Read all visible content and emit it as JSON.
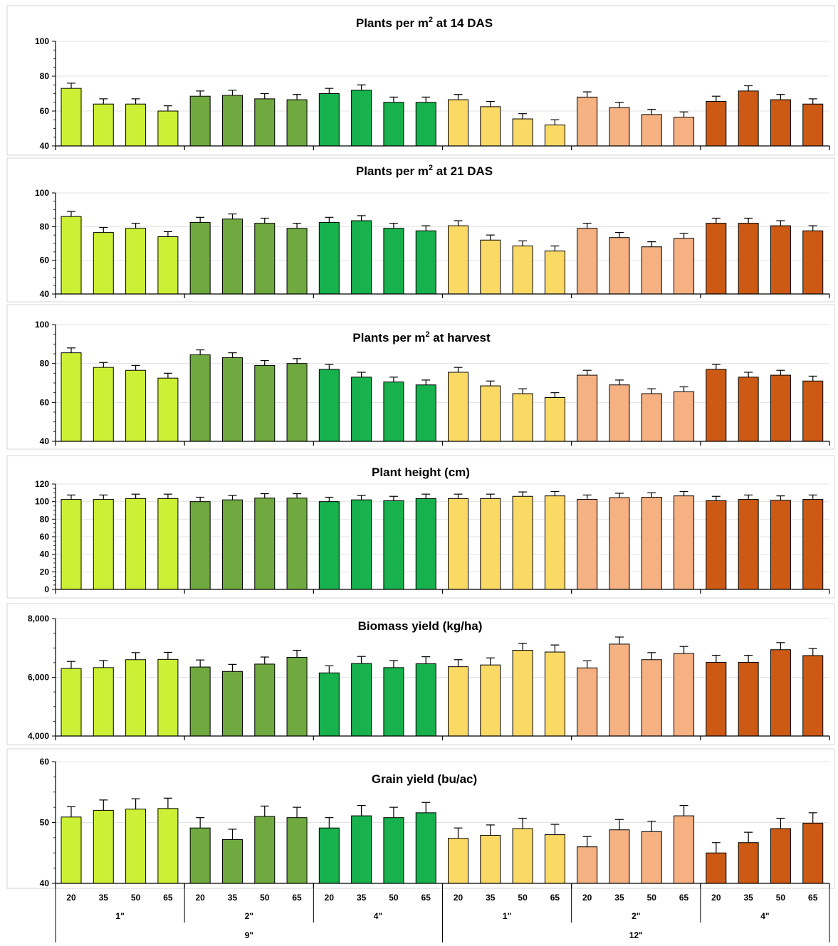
{
  "chart_data": [
    {
      "type": "bar",
      "title": "Plants per m² at 14 DAS",
      "title_parts": [
        "Plants per m",
        "2",
        " at 14 DAS"
      ],
      "ylim": [
        40,
        100
      ],
      "yticks": [
        "40",
        "60",
        "80",
        "100"
      ],
      "values": [
        73,
        64,
        64,
        60,
        68.5,
        69,
        67,
        66.5,
        70,
        72,
        65,
        65,
        66.5,
        62.5,
        55.5,
        52,
        68,
        62,
        58,
        56.5,
        65.5,
        71.5,
        66.5,
        64
      ],
      "errors": [
        3,
        3,
        3,
        3,
        3,
        3,
        3,
        3,
        3,
        3,
        3,
        3,
        3,
        3,
        3,
        3,
        3,
        3,
        3,
        3,
        3,
        3,
        3,
        3
      ]
    },
    {
      "type": "bar",
      "title": "Plants per m² at 21 DAS",
      "title_parts": [
        "Plants per m",
        "2",
        " at 21 DAS"
      ],
      "ylim": [
        40,
        100
      ],
      "yticks": [
        "40",
        "60",
        "80",
        "100"
      ],
      "values": [
        86,
        76.5,
        79,
        74,
        82.5,
        84.5,
        82,
        79,
        82.5,
        83.5,
        79,
        77.5,
        80.5,
        72,
        68.5,
        65.5,
        79,
        73.5,
        68,
        73,
        82,
        82,
        80.5,
        77.5
      ],
      "errors": [
        3,
        3,
        3,
        3,
        3,
        3,
        3,
        3,
        3,
        3,
        3,
        3,
        3,
        3,
        3,
        3,
        3,
        3,
        3,
        3,
        3,
        3,
        3,
        3
      ]
    },
    {
      "type": "bar",
      "title": "Plants per m² at harvest",
      "title_parts": [
        "Plants per m",
        "2",
        " at harvest"
      ],
      "ylim": [
        40,
        100
      ],
      "yticks": [
        "40",
        "60",
        "80",
        "100"
      ],
      "values": [
        85.5,
        78,
        76.5,
        72.5,
        84.5,
        83,
        79,
        80,
        77,
        73,
        70.5,
        69,
        75.5,
        68.5,
        64.5,
        62.5,
        74,
        69,
        64.5,
        65.5,
        77,
        73,
        74,
        71
      ],
      "errors": [
        2.5,
        2.5,
        2.5,
        2.5,
        2.5,
        2.5,
        2.5,
        2.5,
        2.5,
        2.5,
        2.5,
        2.5,
        2.5,
        2.5,
        2.5,
        2.5,
        2.5,
        2.5,
        2.5,
        2.5,
        2.5,
        2.5,
        2.5,
        2.5
      ]
    },
    {
      "type": "bar",
      "title": "Plant height (cm)",
      "title_parts": [
        "Plant height (cm)",
        "",
        ""
      ],
      "ylim": [
        0,
        120
      ],
      "yticks": [
        "0",
        "20",
        "40",
        "60",
        "80",
        "100",
        "120"
      ],
      "values": [
        102.5,
        102.5,
        103.5,
        103.5,
        100,
        102,
        104,
        104,
        100,
        102,
        101,
        103.5,
        103.5,
        103.5,
        106,
        106.5,
        102.5,
        104.5,
        105,
        106.5,
        101,
        102.5,
        101.5,
        102.5
      ],
      "errors": [
        5,
        5,
        5,
        5,
        5,
        5,
        5,
        5,
        5,
        5,
        5,
        5,
        5,
        5,
        5,
        5,
        5,
        5,
        5,
        5,
        5,
        5,
        5,
        5
      ]
    },
    {
      "type": "bar",
      "title": "Biomass yield (kg/ha)",
      "title_parts": [
        "Biomass yield (kg/ha)",
        "",
        ""
      ],
      "ylim": [
        4000,
        8000
      ],
      "yticks": [
        "4,000",
        "6,000",
        "8,000"
      ],
      "values": [
        6300,
        6330,
        6600,
        6610,
        6350,
        6200,
        6450,
        6680,
        6150,
        6470,
        6330,
        6460,
        6360,
        6420,
        6920,
        6860,
        6320,
        7130,
        6600,
        6810,
        6510,
        6510,
        6940,
        6740
      ],
      "errors": [
        240,
        240,
        240,
        240,
        240,
        240,
        240,
        240,
        240,
        240,
        240,
        240,
        240,
        240,
        240,
        240,
        240,
        240,
        240,
        240,
        240,
        240,
        240,
        240
      ]
    },
    {
      "type": "bar",
      "title": "Grain yield (bu/ac)",
      "title_parts": [
        "Grain yield (bu/ac)",
        "",
        ""
      ],
      "ylim": [
        40,
        60
      ],
      "yticks": [
        "40",
        "50",
        "60"
      ],
      "values": [
        50.9,
        52,
        52.2,
        52.3,
        49.1,
        47.2,
        51,
        50.8,
        49.1,
        51.1,
        50.8,
        51.6,
        47.4,
        47.9,
        49,
        48,
        46,
        48.8,
        48.5,
        51.1,
        45,
        46.7,
        49,
        49.9
      ],
      "errors": [
        1.7,
        1.7,
        1.7,
        1.7,
        1.7,
        1.7,
        1.7,
        1.7,
        1.7,
        1.7,
        1.7,
        1.7,
        1.7,
        1.7,
        1.7,
        1.7,
        1.7,
        1.7,
        1.7,
        1.7,
        1.7,
        1.7,
        1.7,
        1.7
      ]
    }
  ],
  "x_axis": {
    "levels": [
      "20",
      "35",
      "50",
      "65"
    ],
    "depths": [
      "1\"",
      "2\"",
      "4\"",
      "1\"",
      "2\"",
      "4\""
    ],
    "spacings": [
      "9\"",
      "12\""
    ]
  },
  "colors": {
    "groups": [
      "#ccf035",
      "#6fa93f",
      "#17b24d",
      "#fbd965",
      "#f6b183",
      "#cc5a14"
    ],
    "bar_outline": "#000000",
    "gridline": "#e3e3e3",
    "axis": "#000000"
  }
}
